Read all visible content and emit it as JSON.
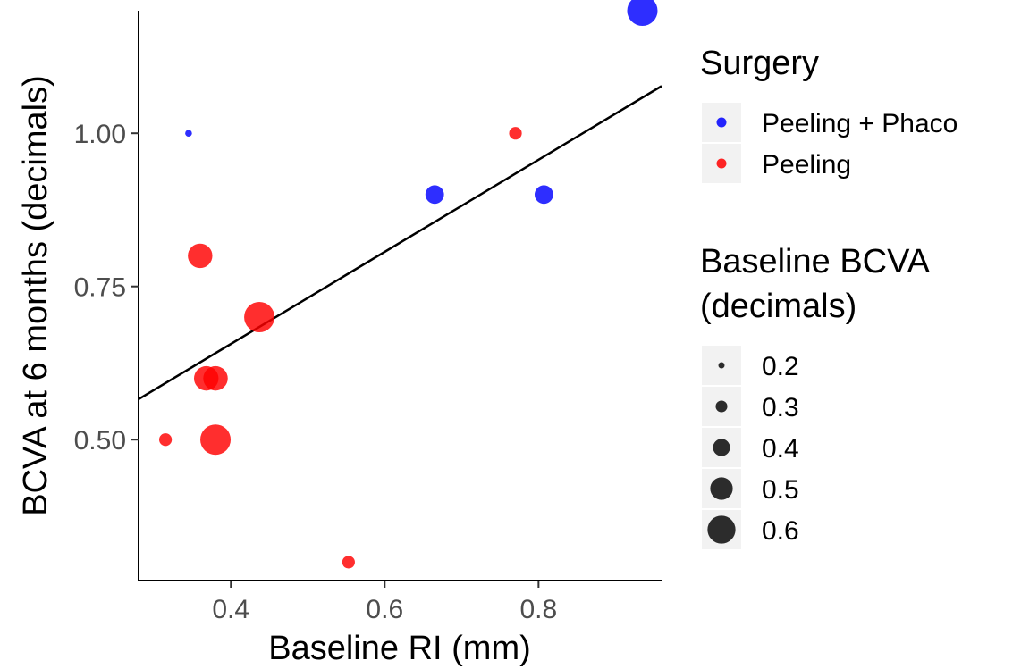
{
  "chart_data": {
    "type": "scatter",
    "xlabel": "Baseline RI (mm)",
    "ylabel": "BCVA at 6 months (decimals)",
    "xlim": [
      0.28,
      0.96
    ],
    "ylim": [
      0.27,
      1.2
    ],
    "x_ticks": [
      {
        "value": 0.4,
        "label": "0.4"
      },
      {
        "value": 0.6,
        "label": "0.6"
      },
      {
        "value": 0.8,
        "label": "0.8"
      }
    ],
    "y_ticks": [
      {
        "value": 0.5,
        "label": "0.50"
      },
      {
        "value": 0.75,
        "label": "0.75"
      },
      {
        "value": 1.0,
        "label": "1.00"
      }
    ],
    "grid": false,
    "trend_line": {
      "x": [
        0.28,
        0.96
      ],
      "y": [
        0.566,
        1.077
      ],
      "color": "#000000"
    },
    "series": [
      {
        "name": "Peeling + Phaco",
        "color": "#0000FF",
        "points": [
          {
            "x": 0.345,
            "y": 1.0,
            "size": 0.2
          },
          {
            "x": 0.665,
            "y": 0.9,
            "size": 0.4
          },
          {
            "x": 0.807,
            "y": 0.9,
            "size": 0.4
          },
          {
            "x": 0.935,
            "y": 1.2,
            "size": 0.6
          }
        ]
      },
      {
        "name": "Peeling",
        "color": "#FF0000",
        "points": [
          {
            "x": 0.315,
            "y": 0.5,
            "size": 0.3
          },
          {
            "x": 0.36,
            "y": 0.8,
            "size": 0.5
          },
          {
            "x": 0.368,
            "y": 0.6,
            "size": 0.5
          },
          {
            "x": 0.38,
            "y": 0.6,
            "size": 0.5
          },
          {
            "x": 0.38,
            "y": 0.5,
            "size": 0.6
          },
          {
            "x": 0.437,
            "y": 0.7,
            "size": 0.6
          },
          {
            "x": 0.553,
            "y": 0.3,
            "size": 0.3
          },
          {
            "x": 0.77,
            "y": 1.0,
            "size": 0.3
          }
        ]
      }
    ],
    "legend": {
      "position": "right",
      "color_title": "Surgery",
      "size_title_lines": [
        "Baseline BCVA",
        "(decimals)"
      ],
      "size_entries": [
        {
          "label": "0.2",
          "size": 0.2
        },
        {
          "label": "0.3",
          "size": 0.3
        },
        {
          "label": "0.4",
          "size": 0.4
        },
        {
          "label": "0.5",
          "size": 0.5
        },
        {
          "label": "0.6",
          "size": 0.6
        }
      ]
    }
  }
}
